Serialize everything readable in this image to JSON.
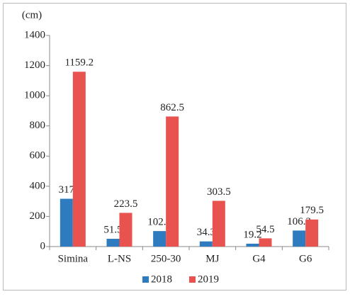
{
  "chart_data": {
    "type": "bar",
    "y_label": "(cm)",
    "categories": [
      "Simina",
      "L-NS",
      "250-30",
      "MJ",
      "G4",
      "G6"
    ],
    "series": [
      {
        "name": "2018",
        "color": "#2e7bbf",
        "values": [
          317,
          51.5,
          102.8,
          34.3,
          19.2,
          106.3
        ]
      },
      {
        "name": "2019",
        "color": "#e8534f",
        "values": [
          1159.2,
          223.5,
          862.5,
          303.5,
          54.5,
          179.5
        ]
      }
    ],
    "ylim": [
      0,
      1400
    ],
    "yticks": [
      0,
      200,
      400,
      600,
      800,
      1000,
      1200,
      1400
    ],
    "grid": false,
    "legend": "bottom"
  }
}
